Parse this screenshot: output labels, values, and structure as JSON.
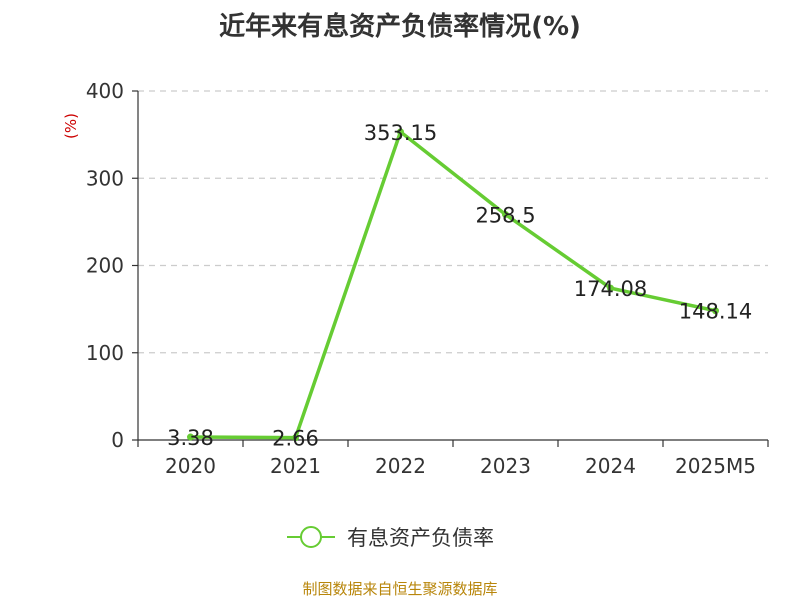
{
  "chart_data": {
    "type": "line",
    "title": "近年来有息资产负债率情况(%)",
    "ylabel": "(%)",
    "xlabel": "",
    "categories": [
      "2020",
      "2021",
      "2022",
      "2023",
      "2024",
      "2025M5"
    ],
    "series": [
      {
        "name": "有息资产负债率",
        "values": [
          3.38,
          2.66,
          353.15,
          258.5,
          174.08,
          148.14
        ],
        "data_labels": [
          "3.38",
          "2.66",
          "353.15",
          "258.5",
          "174.08",
          "148.14"
        ]
      }
    ],
    "ylim": [
      0,
      400
    ],
    "yticks": [
      0,
      100,
      200,
      300,
      400
    ],
    "grid": true,
    "legend_position": "bottom",
    "colors": {
      "series": "#66cc33",
      "ylabel": "#cc0000",
      "source": "#b8860b",
      "grid": "#cccccc",
      "axis": "#333333"
    }
  },
  "source_note": "制图数据来自恒生聚源数据库"
}
